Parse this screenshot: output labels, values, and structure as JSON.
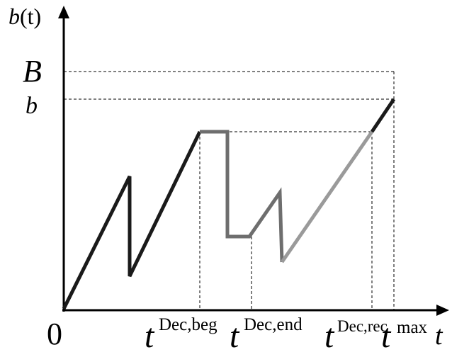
{
  "labels": {
    "y_axis": "b(t)",
    "y_axis_symbol": "b",
    "y_axis_arg": "(t)",
    "x_axis": "t",
    "origin": "0",
    "B": "B",
    "b": "b",
    "t_dec_beg_base": "t",
    "t_dec_beg_sup": "Dec,beg",
    "t_dec_end_base": "t",
    "t_dec_end_sup": "Dec,end",
    "t_dec_rec_base": "t",
    "t_dec_rec_sup": "Dec,rec",
    "t_max_base": "t",
    "t_max_sup": "max"
  },
  "colors": {
    "axis": "#000000",
    "curve_dark": "#1a1a1a",
    "curve_mid": "#6e6e6e",
    "curve_light": "#9a9a9a",
    "guide": "#000000",
    "background": "#ffffff"
  }
}
